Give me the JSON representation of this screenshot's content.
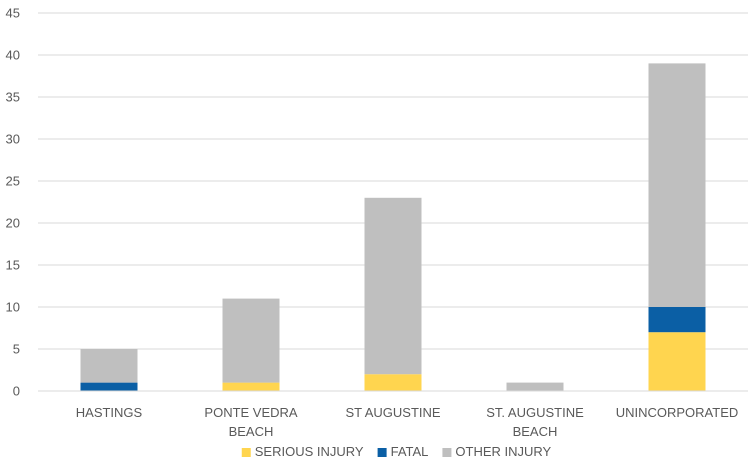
{
  "chart_data": {
    "type": "bar",
    "stacked": true,
    "categories": [
      "HASTINGS",
      "PONTE VEDRA BEACH",
      "ST AUGUSTINE",
      "ST. AUGUSTINE BEACH",
      "UNINCORPORATED"
    ],
    "category_lines": [
      [
        "HASTINGS"
      ],
      [
        "PONTE VEDRA",
        "BEACH"
      ],
      [
        "ST AUGUSTINE"
      ],
      [
        "ST. AUGUSTINE",
        "BEACH"
      ],
      [
        "UNINCORPORATED"
      ]
    ],
    "series": [
      {
        "name": "SERIOUS INJURY",
        "color": "#FFD54F",
        "values": [
          0,
          1,
          2,
          0,
          7
        ]
      },
      {
        "name": "FATAL",
        "color": "#0B5FA5",
        "values": [
          1,
          0,
          0,
          0,
          3
        ]
      },
      {
        "name": "OTHER INJURY",
        "color": "#BFBFBF",
        "values": [
          4,
          10,
          21,
          1,
          29
        ]
      }
    ],
    "yticks": [
      "0",
      "5",
      "10",
      "15",
      "20",
      "25",
      "30",
      "35",
      "40",
      "45"
    ],
    "ylim": [
      0,
      45
    ],
    "grid": true,
    "legend": "bottom",
    "title": "",
    "xlabel": "",
    "ylabel": ""
  }
}
